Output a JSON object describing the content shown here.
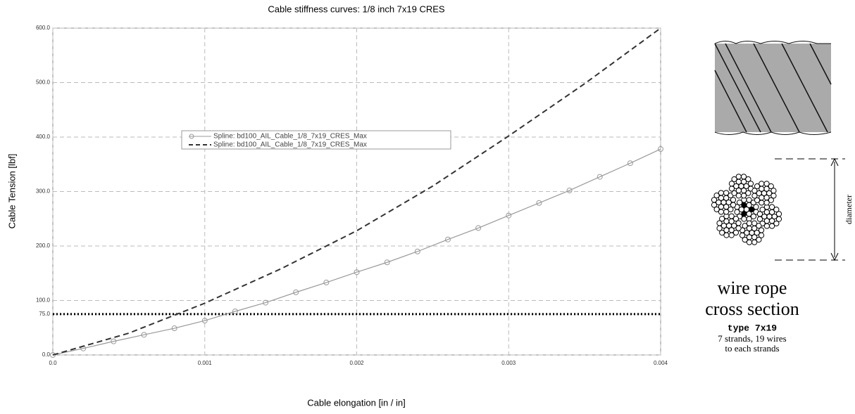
{
  "chart_data": {
    "type": "line",
    "title": "Cable stiffness curves:  1/8 inch 7x19 CRES",
    "x_label": "Cable elongation [in / in]",
    "y_label": "Cable Tension [lbf]",
    "xlim": [
      0,
      0.004
    ],
    "ylim": [
      0,
      600
    ],
    "xticks": [
      {
        "value": 0,
        "label": "0.0"
      },
      0.001,
      0.002,
      0.003,
      0.004
    ],
    "yticks": [
      {
        "value": 0,
        "label": "0.0"
      },
      {
        "value": 75,
        "label": "75.0"
      },
      {
        "value": 100,
        "label": "100.0"
      },
      {
        "value": 200,
        "label": "200.0"
      },
      {
        "value": 300,
        "label": "300.0"
      },
      {
        "value": 400,
        "label": "400.0"
      },
      {
        "value": 500,
        "label": "500.0"
      },
      {
        "value": 600,
        "label": "600.0"
      }
    ],
    "grid": true,
    "threshold": {
      "value": 75,
      "color": "#000000"
    },
    "series": [
      {
        "name": "Spline: bd100_AIL_Cable_1/8_7x19_CRES_Max",
        "color": "#999999",
        "dash": false,
        "markers": true,
        "x": [
          0,
          0.0002,
          0.0004,
          0.0006,
          0.0008,
          0.001,
          0.0012,
          0.0014,
          0.0016,
          0.0018,
          0.002,
          0.0022,
          0.0024,
          0.0026,
          0.0028,
          0.003,
          0.0032,
          0.0034,
          0.0036,
          0.0038,
          0.004
        ],
        "values": [
          0,
          12,
          25,
          37,
          49,
          63,
          80,
          96,
          115,
          133,
          152,
          170,
          190,
          212,
          233,
          256,
          279,
          302,
          327,
          352,
          378
        ]
      },
      {
        "name": "Spline: bd100_AIL_Cable_1/8_7x19_CRES_Max",
        "color": "#333333",
        "dash": true,
        "markers": false,
        "x": [
          0,
          0.0005,
          0.001,
          0.0015,
          0.002,
          0.0025,
          0.003,
          0.0035,
          0.004
        ],
        "values": [
          0,
          40,
          95,
          158,
          228,
          310,
          402,
          498,
          600
        ]
      }
    ]
  },
  "diagram": {
    "dimension_label": "diameter",
    "caption_1": "wire rope",
    "caption_2": "cross section",
    "caption_3": "type 7x19",
    "caption_4": "7 strands, 19 wires",
    "caption_5": "to each strands"
  }
}
